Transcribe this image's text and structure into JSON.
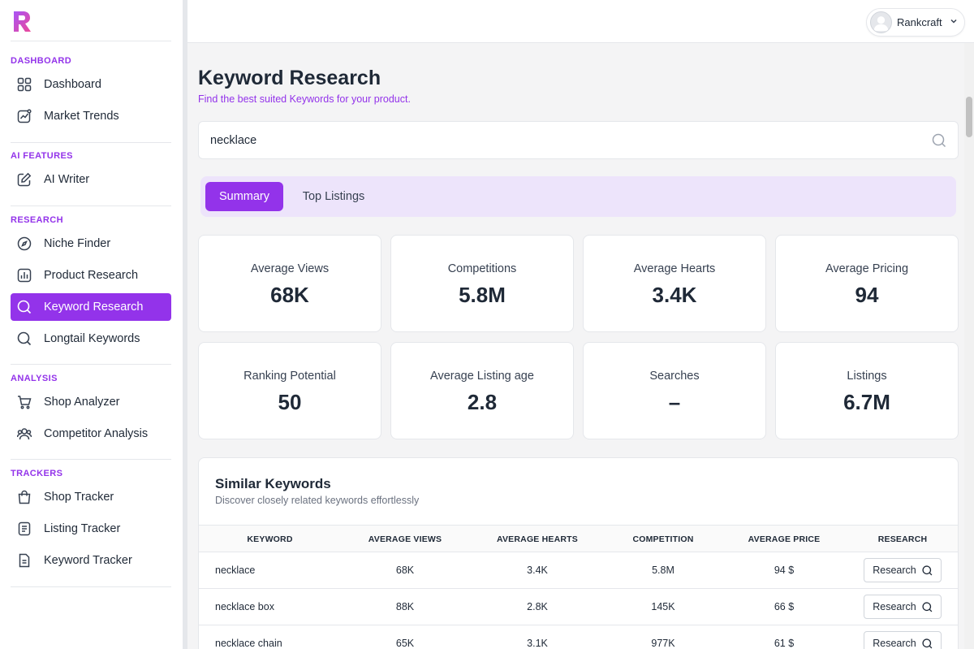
{
  "sidebar": {
    "sections": [
      {
        "title": "DASHBOARD",
        "items": [
          {
            "label": "Dashboard",
            "icon": "grid-icon"
          },
          {
            "label": "Market Trends",
            "icon": "trend-icon"
          }
        ]
      },
      {
        "title": "AI FEATURES",
        "items": [
          {
            "label": "AI Writer",
            "icon": "pen-icon"
          }
        ]
      },
      {
        "title": "RESEARCH",
        "items": [
          {
            "label": "Niche Finder",
            "icon": "compass-icon"
          },
          {
            "label": "Product Research",
            "icon": "bar-chart-icon"
          },
          {
            "label": "Keyword Research",
            "icon": "search-icon",
            "active": true
          },
          {
            "label": "Longtail Keywords",
            "icon": "search-icon"
          }
        ]
      },
      {
        "title": "ANALYSIS",
        "items": [
          {
            "label": "Shop Analyzer",
            "icon": "cart-icon"
          },
          {
            "label": "Competitor Analysis",
            "icon": "users-icon"
          }
        ]
      },
      {
        "title": "TRACKERS",
        "items": [
          {
            "label": "Shop Tracker",
            "icon": "bag-icon"
          },
          {
            "label": "Listing Tracker",
            "icon": "list-icon"
          },
          {
            "label": "Keyword Tracker",
            "icon": "doc-icon"
          }
        ]
      }
    ]
  },
  "header": {
    "user_name": "Rankcraft"
  },
  "page": {
    "title": "Keyword Research",
    "subtitle": "Find the best suited Keywords for your product."
  },
  "search": {
    "value": "necklace"
  },
  "tabs": [
    {
      "label": "Summary",
      "active": true
    },
    {
      "label": "Top Listings",
      "active": false
    }
  ],
  "stats": [
    {
      "label": "Average Views",
      "value": "68K"
    },
    {
      "label": "Competitions",
      "value": "5.8M"
    },
    {
      "label": "Average Hearts",
      "value": "3.4K"
    },
    {
      "label": "Average Pricing",
      "value": "94"
    },
    {
      "label": "Ranking Potential",
      "value": "50"
    },
    {
      "label": "Average Listing age",
      "value": "2.8"
    },
    {
      "label": "Searches",
      "value": "–"
    },
    {
      "label": "Listings",
      "value": "6.7M"
    }
  ],
  "similar": {
    "title": "Similar Keywords",
    "subtitle": "Discover closely related keywords effortlessly",
    "columns": [
      "KEYWORD",
      "AVERAGE VIEWS",
      "AVERAGE HEARTS",
      "COMPETITION",
      "AVERAGE PRICE",
      "RESEARCH"
    ],
    "rows": [
      {
        "keyword": "necklace",
        "views": "68K",
        "hearts": "3.4K",
        "competition": "5.8M",
        "price": "94 $",
        "action": "Research"
      },
      {
        "keyword": "necklace box",
        "views": "88K",
        "hearts": "2.8K",
        "competition": "145K",
        "price": "66 $",
        "action": "Research"
      },
      {
        "keyword": "necklace chain",
        "views": "65K",
        "hearts": "3.1K",
        "competition": "977K",
        "price": "61 $",
        "action": "Research"
      }
    ]
  }
}
